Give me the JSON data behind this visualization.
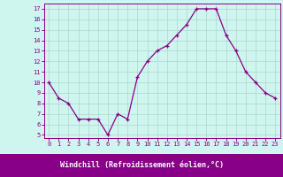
{
  "x": [
    0,
    1,
    2,
    3,
    4,
    5,
    6,
    7,
    8,
    9,
    10,
    11,
    12,
    13,
    14,
    15,
    16,
    17,
    18,
    19,
    20,
    21,
    22,
    23
  ],
  "y": [
    10,
    8.5,
    8,
    6.5,
    6.5,
    6.5,
    5,
    7,
    6.5,
    10.5,
    12,
    13,
    13.5,
    14.5,
    15.5,
    17,
    17,
    17,
    14.5,
    13,
    11,
    10,
    9,
    8.5
  ],
  "line_color": "#880088",
  "marker_color": "#880088",
  "bg_color": "#cef5ee",
  "grid_color": "#aad8d0",
  "xlabel": "Windchill (Refroidissement éolien,°C)",
  "xlim": [
    -0.5,
    23.5
  ],
  "ylim": [
    4.7,
    17.5
  ],
  "yticks": [
    5,
    6,
    7,
    8,
    9,
    10,
    11,
    12,
    13,
    14,
    15,
    16,
    17
  ],
  "xticks": [
    0,
    1,
    2,
    3,
    4,
    5,
    6,
    7,
    8,
    9,
    10,
    11,
    12,
    13,
    14,
    15,
    16,
    17,
    18,
    19,
    20,
    21,
    22,
    23
  ],
  "tick_fontsize": 5.0,
  "xlabel_fontsize": 6.0,
  "marker_size": 3.5,
  "line_width": 0.9,
  "bottom_bar_color": "#880088",
  "bottom_bar_height": 0.13
}
